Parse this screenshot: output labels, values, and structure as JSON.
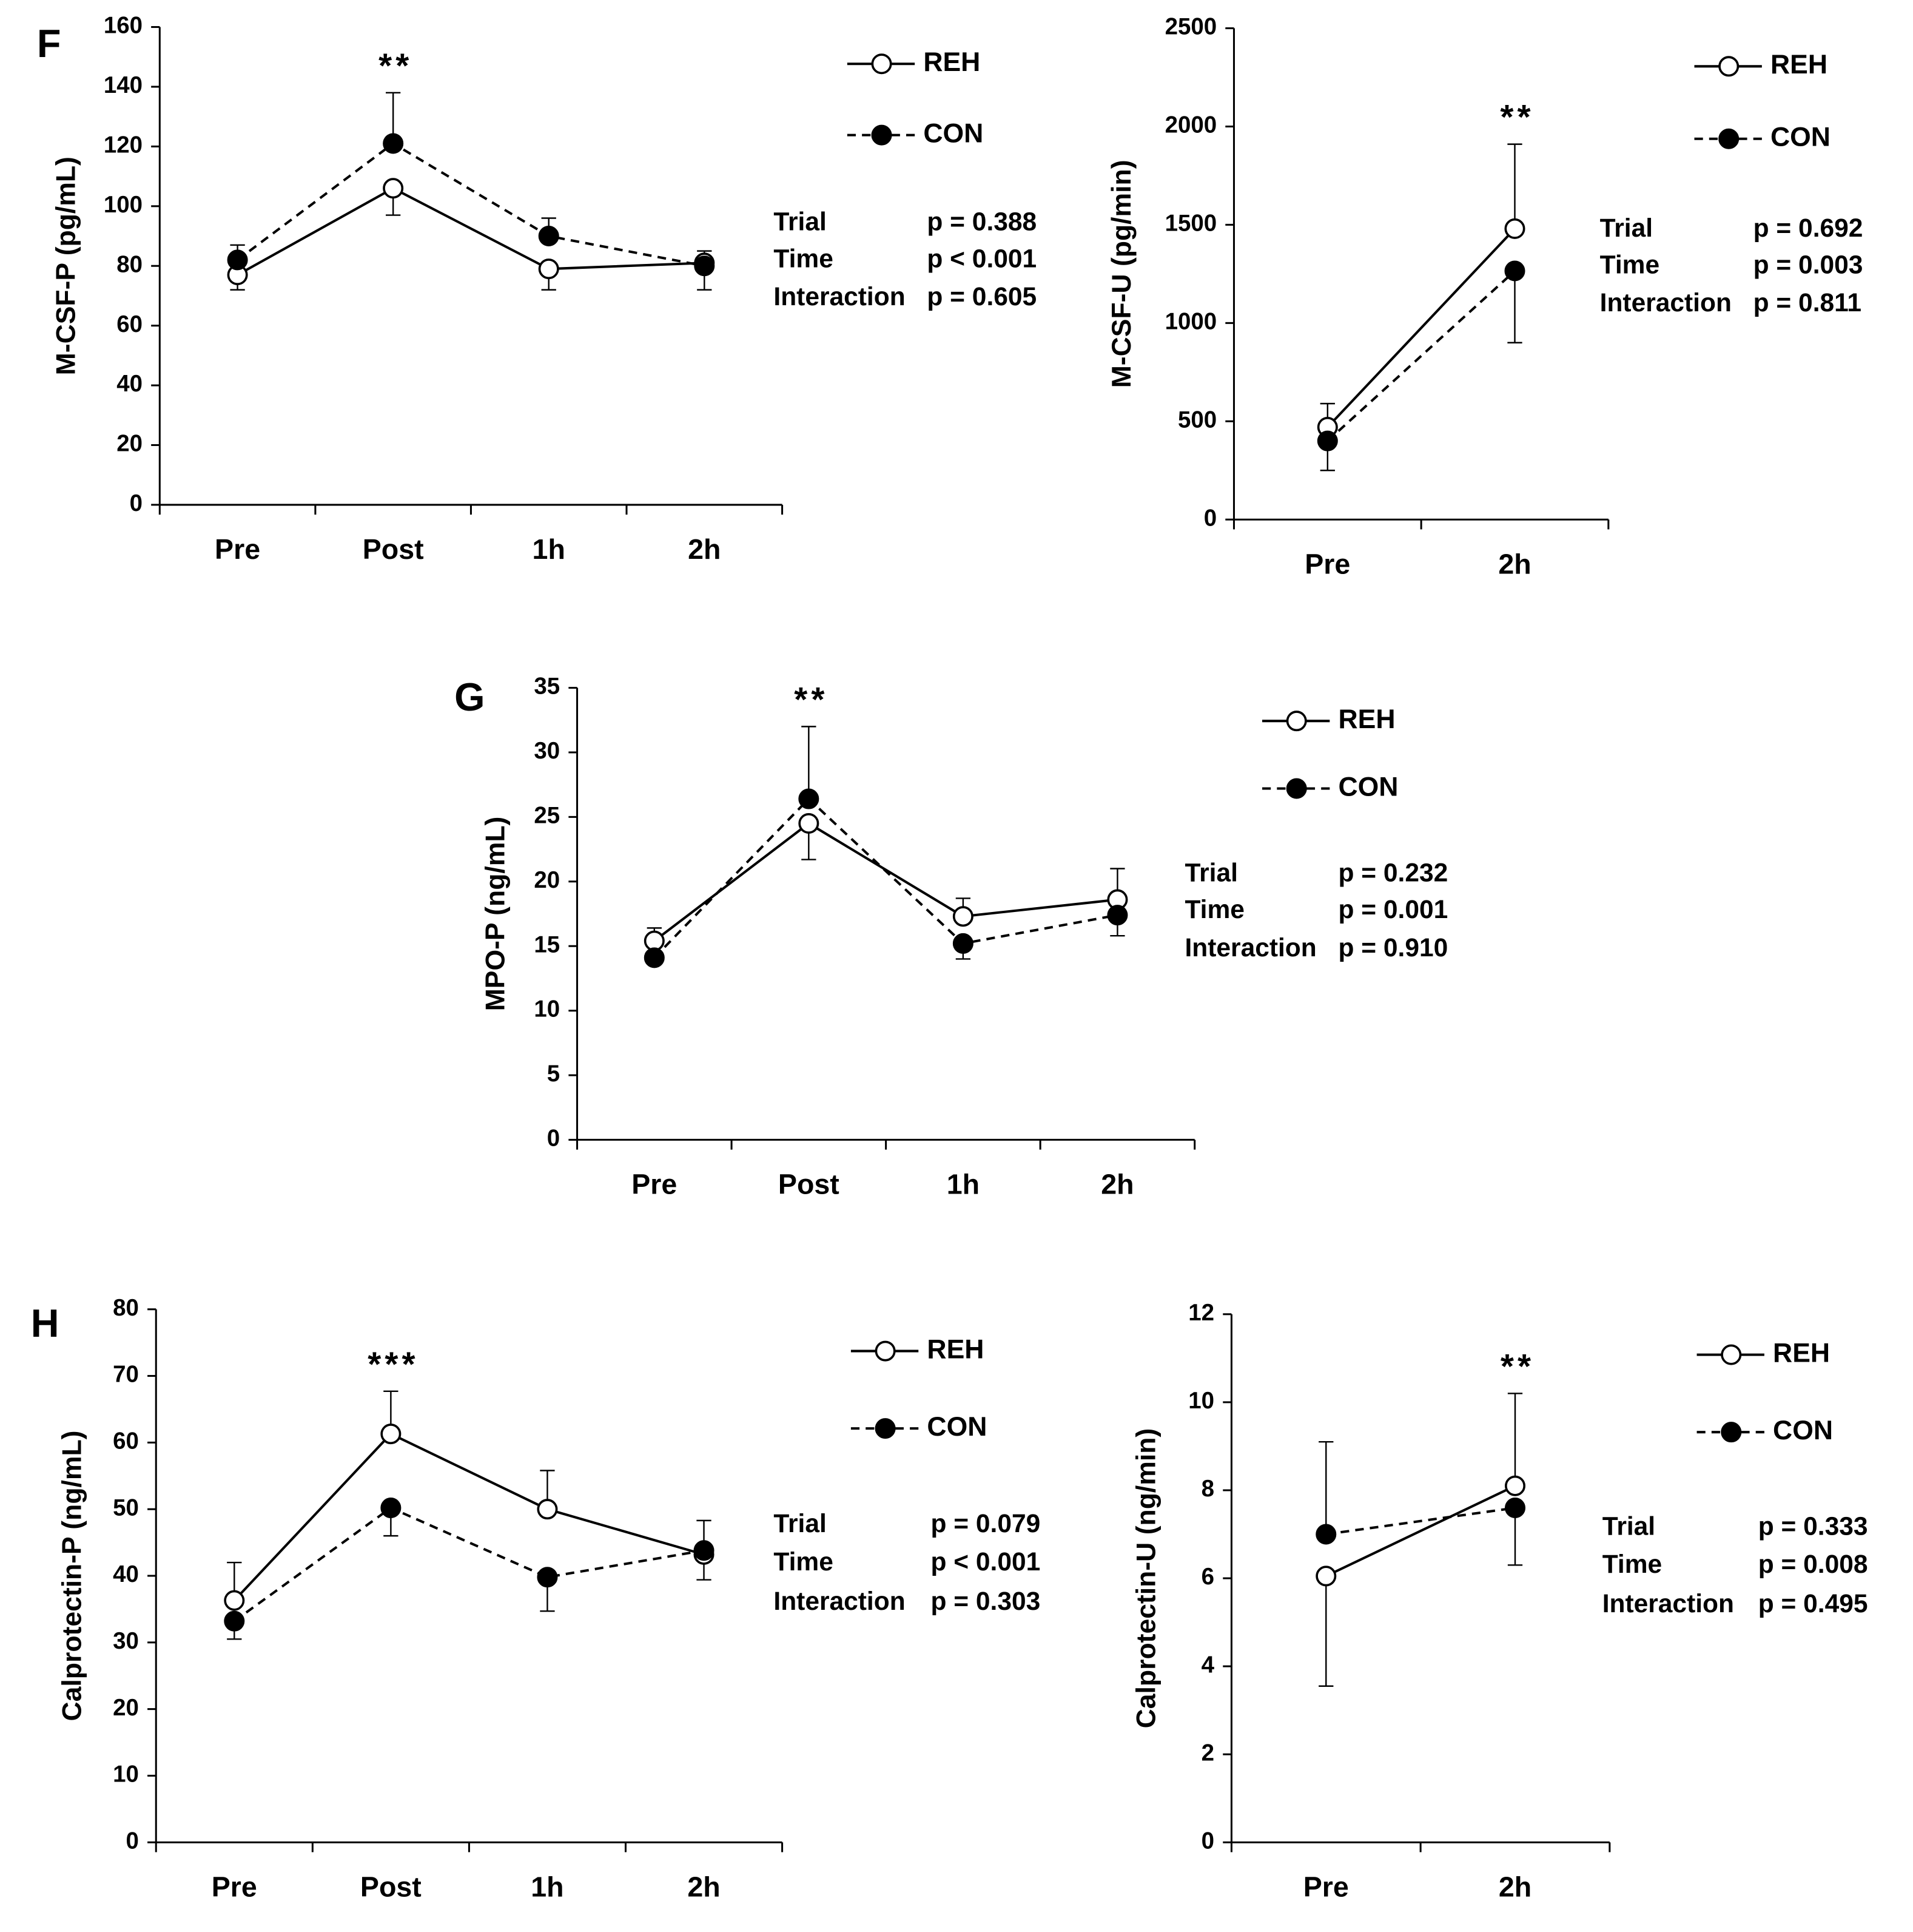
{
  "chart_data": [
    {
      "type": "line",
      "panel_label": "F",
      "ylabel": "M-CSF-P (pg/mL)",
      "categories": [
        "Pre",
        "Post",
        "1h",
        "2h"
      ],
      "series": [
        {
          "name": "REH",
          "color": "#000000",
          "marker_fill": "#ffffff",
          "dashed": false,
          "values": [
            77,
            106,
            79,
            81
          ],
          "errors": [
            5,
            9,
            7,
            4
          ]
        },
        {
          "name": "CON",
          "color": "#000000",
          "marker_fill": "#000000",
          "dashed": true,
          "values": [
            82,
            121,
            90,
            80
          ],
          "errors": [
            5,
            17,
            6,
            8
          ]
        }
      ],
      "ylim": [
        0,
        160
      ],
      "yticks": [
        0,
        20,
        40,
        60,
        80,
        100,
        120,
        140,
        160
      ],
      "annotation": "**",
      "stats": [
        {
          "label": "Trial",
          "value": "p = 0.388"
        },
        {
          "label": "Time",
          "value": "p < 0.001"
        },
        {
          "label": "Interaction",
          "value": "p = 0.605"
        }
      ]
    },
    {
      "type": "line",
      "ylabel": "M-CSF-U (pg/min)",
      "categories": [
        "Pre",
        "2h"
      ],
      "series": [
        {
          "name": "REH",
          "color": "#000000",
          "marker_fill": "#ffffff",
          "dashed": false,
          "values": [
            470,
            1480
          ],
          "errors": [
            120,
            430
          ]
        },
        {
          "name": "CON",
          "color": "#000000",
          "marker_fill": "#000000",
          "dashed": true,
          "values": [
            400,
            1265
          ],
          "errors": [
            150,
            365
          ]
        }
      ],
      "ylim": [
        0,
        2500
      ],
      "yticks": [
        0,
        500,
        1000,
        1500,
        2000,
        2500
      ],
      "annotation": "**",
      "stats": [
        {
          "label": "Trial",
          "value": "p = 0.692"
        },
        {
          "label": "Time",
          "value": "p = 0.003"
        },
        {
          "label": "Interaction",
          "value": "p = 0.811"
        }
      ]
    },
    {
      "type": "line",
      "panel_label": "G",
      "ylabel": "MPO-P (ng/mL)",
      "categories": [
        "Pre",
        "Post",
        "1h",
        "2h"
      ],
      "series": [
        {
          "name": "REH",
          "color": "#000000",
          "marker_fill": "#ffffff",
          "dashed": false,
          "values": [
            15.4,
            24.5,
            17.3,
            18.6
          ],
          "errors": [
            1.0,
            2.8,
            1.4,
            2.4
          ]
        },
        {
          "name": "CON",
          "color": "#000000",
          "marker_fill": "#000000",
          "dashed": true,
          "values": [
            14.1,
            26.4,
            15.2,
            17.4
          ],
          "errors": [
            0.3,
            5.6,
            1.2,
            1.6
          ]
        }
      ],
      "ylim": [
        0,
        35
      ],
      "yticks": [
        0,
        5,
        10,
        15,
        20,
        25,
        30,
        35
      ],
      "annotation": "**",
      "stats": [
        {
          "label": "Trial",
          "value": "p = 0.232"
        },
        {
          "label": "Time",
          "value": "p = 0.001"
        },
        {
          "label": "Interaction",
          "value": "p = 0.910"
        }
      ]
    },
    {
      "type": "line",
      "panel_label": "H",
      "ylabel": "Calprotectin-P (ng/mL)",
      "categories": [
        "Pre",
        "Post",
        "1h",
        "2h"
      ],
      "series": [
        {
          "name": "REH",
          "color": "#000000",
          "marker_fill": "#ffffff",
          "dashed": false,
          "values": [
            36.3,
            61.3,
            50,
            43.2
          ],
          "errors": [
            5.7,
            6.4,
            5.8,
            3.8
          ]
        },
        {
          "name": "CON",
          "color": "#000000",
          "marker_fill": "#000000",
          "dashed": true,
          "values": [
            33.2,
            50.2,
            39.8,
            43.8
          ],
          "errors": [
            2.7,
            4.2,
            5.1,
            4.5
          ]
        }
      ],
      "ylim": [
        0,
        80
      ],
      "yticks": [
        0,
        10,
        20,
        30,
        40,
        50,
        60,
        70,
        80
      ],
      "annotation": "***",
      "stats": [
        {
          "label": "Trial",
          "value": "p = 0.079"
        },
        {
          "label": "Time",
          "value": "p < 0.001"
        },
        {
          "label": "Interaction",
          "value": "p = 0.303"
        }
      ]
    },
    {
      "type": "line",
      "ylabel": "Calprotectin-U (ng/min)",
      "categories": [
        "Pre",
        "2h"
      ],
      "series": [
        {
          "name": "REH",
          "color": "#000000",
          "marker_fill": "#ffffff",
          "dashed": false,
          "values": [
            6.05,
            8.1
          ],
          "errors": [
            2.5,
            2.1
          ]
        },
        {
          "name": "CON",
          "color": "#000000",
          "marker_fill": "#000000",
          "dashed": true,
          "values": [
            7.0,
            7.6
          ],
          "errors": [
            2.1,
            1.3
          ]
        }
      ],
      "ylim": [
        0,
        12
      ],
      "yticks": [
        0,
        2,
        4,
        6,
        8,
        10,
        12
      ],
      "annotation": "**",
      "stats": [
        {
          "label": "Trial",
          "value": "p = 0.333"
        },
        {
          "label": "Time",
          "value": "p = 0.008"
        },
        {
          "label": "Interaction",
          "value": "p = 0.495"
        }
      ]
    }
  ]
}
